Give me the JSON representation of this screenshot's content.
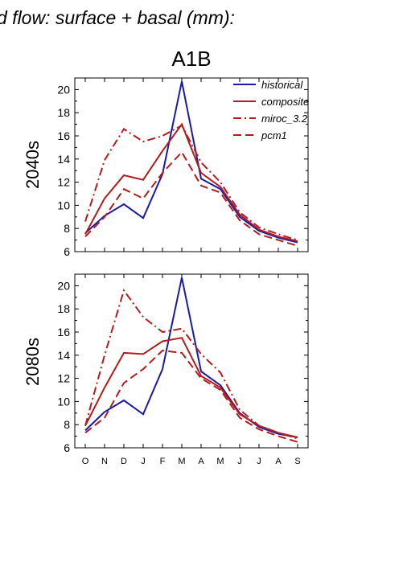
{
  "figure": {
    "suptitle": "d flow: surface + basal (mm):",
    "title": "A1B"
  },
  "colors": {
    "historical": "#1a1aaa",
    "model": "#b21c1c"
  },
  "chart_data": [
    {
      "type": "line",
      "ylabel": "2040s",
      "categories": [
        "O",
        "N",
        "D",
        "J",
        "F",
        "M",
        "A",
        "M",
        "J",
        "J",
        "A",
        "S"
      ],
      "ylim": [
        6,
        21
      ],
      "yticks": [
        6,
        8,
        10,
        12,
        14,
        16,
        18,
        20
      ],
      "legend": "top-right",
      "series": [
        {
          "name": "historical",
          "style": "solid",
          "color": "#1a1aaa",
          "values": [
            7.6,
            9.1,
            10.1,
            8.9,
            12.7,
            20.7,
            12.3,
            11.4,
            9.0,
            7.8,
            7.2,
            6.8
          ]
        },
        {
          "name": "composite",
          "style": "solid",
          "color": "#b21c1c",
          "values": [
            7.5,
            10.6,
            12.6,
            12.2,
            14.7,
            17.0,
            12.8,
            11.6,
            9.2,
            7.9,
            7.3,
            6.9
          ]
        },
        {
          "name": "miroc_3.2",
          "style": "dashdot",
          "color": "#b21c1c",
          "values": [
            8.6,
            13.9,
            16.6,
            15.5,
            16.0,
            16.9,
            13.7,
            12.0,
            9.4,
            8.1,
            7.5,
            7.0
          ]
        },
        {
          "name": "pcm1",
          "style": "dash",
          "color": "#b21c1c",
          "values": [
            7.3,
            9.0,
            11.4,
            10.6,
            12.8,
            14.6,
            11.7,
            11.1,
            8.7,
            7.5,
            7.0,
            6.5
          ]
        }
      ]
    },
    {
      "type": "line",
      "ylabel": "2080s",
      "categories": [
        "O",
        "N",
        "D",
        "J",
        "F",
        "M",
        "A",
        "M",
        "J",
        "J",
        "A",
        "S"
      ],
      "ylim": [
        6,
        21
      ],
      "yticks": [
        6,
        8,
        10,
        12,
        14,
        16,
        18,
        20
      ],
      "series": [
        {
          "name": "historical",
          "style": "solid",
          "color": "#1a1aaa",
          "values": [
            7.5,
            9.1,
            10.1,
            8.9,
            12.8,
            20.7,
            12.6,
            11.4,
            9.0,
            7.8,
            7.2,
            6.9
          ]
        },
        {
          "name": "composite",
          "style": "solid",
          "color": "#b21c1c",
          "values": [
            7.9,
            11.2,
            14.2,
            14.1,
            15.2,
            15.5,
            12.2,
            11.2,
            8.9,
            7.9,
            7.3,
            6.9
          ]
        },
        {
          "name": "miroc_3.2",
          "style": "dashdot",
          "color": "#b21c1c",
          "values": [
            7.9,
            14.0,
            19.6,
            17.3,
            16.0,
            16.3,
            14.1,
            12.5,
            9.3,
            7.9,
            7.3,
            6.8
          ]
        },
        {
          "name": "pcm1",
          "style": "dash",
          "color": "#b21c1c",
          "values": [
            7.3,
            8.6,
            11.6,
            12.8,
            14.4,
            14.2,
            12.0,
            11.0,
            8.6,
            7.6,
            7.0,
            6.5
          ]
        }
      ]
    }
  ]
}
